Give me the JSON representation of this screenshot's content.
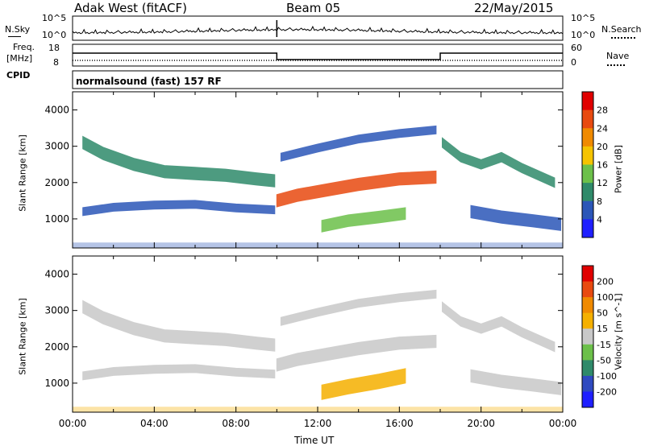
{
  "header": {
    "station": "Adak West (fitACF)",
    "beam": "Beam 05",
    "date": "22/May/2015"
  },
  "top_panel": {
    "left_label": "N.Sky",
    "left_ticks": [
      "10^5",
      "10^0"
    ],
    "right_label": "N.Search",
    "right_ticks": [
      "10^5",
      "10^0"
    ]
  },
  "freq_panel": {
    "left_label_1": "Freq.",
    "left_label_2": "[MHz]",
    "left_ticks": [
      "18",
      "8"
    ],
    "right_label": "Nave",
    "right_ticks": [
      "60",
      "0"
    ],
    "cpid_label": "CPID",
    "cpid_text": "normalsound (fast) 157 RF"
  },
  "chart_data": [
    {
      "type": "heatmap",
      "name": "power",
      "ylabel": "Slant Range [km]",
      "yticks": [
        1000,
        2000,
        3000,
        4000
      ],
      "ylim": [
        200,
        4500
      ],
      "xlim": [
        0,
        24
      ],
      "colorbar_label": "Power [dB]",
      "colorbar_ticks": [
        4,
        8,
        12,
        16,
        20,
        24,
        28
      ],
      "colorbar_colors": [
        "#1f1fff",
        "#2b56b8",
        "#2f8a6a",
        "#6cc04a",
        "#f5c300",
        "#f08a00",
        "#e84a10",
        "#e00000"
      ],
      "bands": [
        {
          "t": [
            0.5,
            1.5,
            3,
            4.5,
            6,
            7.5,
            9,
            9.9
          ],
          "r": [
            3100,
            2800,
            2500,
            2300,
            2250,
            2200,
            2100,
            2050
          ],
          "w": 170,
          "c": "#2f8a6a"
        },
        {
          "t": [
            0.5,
            2,
            4,
            6,
            8,
            9.9
          ],
          "r": [
            1200,
            1320,
            1380,
            1400,
            1300,
            1250
          ],
          "w": 110,
          "c": "#2b56b8"
        },
        {
          "t": [
            10,
            11,
            12.5,
            14,
            16,
            17.8
          ],
          "r": [
            1500,
            1650,
            1800,
            1950,
            2100,
            2150
          ],
          "w": 170,
          "c": "#e84a10"
        },
        {
          "t": [
            10.2,
            12,
            14,
            16,
            17.8
          ],
          "r": [
            2700,
            2950,
            3200,
            3350,
            3450
          ],
          "w": 110,
          "c": "#2b56b8"
        },
        {
          "t": [
            12.2,
            13.5,
            15,
            16.3
          ],
          "r": [
            800,
            950,
            1050,
            1150
          ],
          "w": 160,
          "c": "#6cc04a"
        },
        {
          "t": [
            18.1,
            19,
            20,
            21,
            22,
            23.6
          ],
          "r": [
            3100,
            2700,
            2500,
            2700,
            2400,
            2000
          ],
          "w": 130,
          "c": "#2f8a6a"
        },
        {
          "t": [
            19.5,
            21,
            22.5,
            23.9
          ],
          "r": [
            1200,
            1050,
            950,
            850
          ],
          "w": 170,
          "c": "#2b56b8"
        }
      ]
    },
    {
      "type": "heatmap",
      "name": "velocity",
      "ylabel": "Slant Range [km]",
      "yticks": [
        1000,
        2000,
        3000,
        4000
      ],
      "ylim": [
        200,
        4500
      ],
      "xlim": [
        0,
        24
      ],
      "xticks": [
        "00:00",
        "04:00",
        "08:00",
        "12:00",
        "16:00",
        "20:00",
        "00:00"
      ],
      "xlabel": "Time UT",
      "colorbar_label": "Velocity [m s^-1]",
      "colorbar_ticks": [
        200,
        100,
        50,
        15,
        -15,
        -50,
        -100,
        -200
      ],
      "colorbar_colors": [
        "#1f1fff",
        "#2f4ac0",
        "#2f8a6a",
        "#6cc04a",
        "#c8c8c8",
        "#f5b000",
        "#f08a00",
        "#e84a10",
        "#e00000"
      ],
      "bands": [
        {
          "t": [
            0.5,
            1.5,
            3,
            4.5,
            6,
            7.5,
            9,
            9.9
          ],
          "r": [
            3100,
            2800,
            2500,
            2300,
            2250,
            2200,
            2100,
            2050
          ],
          "w": 170,
          "c": "#c8c8c8"
        },
        {
          "t": [
            0.5,
            2,
            4,
            6,
            8,
            9.9
          ],
          "r": [
            1200,
            1320,
            1380,
            1400,
            1300,
            1250
          ],
          "w": 110,
          "c": "#c8c8c8"
        },
        {
          "t": [
            10,
            11,
            12.5,
            14,
            16,
            17.8
          ],
          "r": [
            1500,
            1650,
            1800,
            1950,
            2100,
            2150
          ],
          "w": 170,
          "c": "#c8c8c8"
        },
        {
          "t": [
            10.2,
            12,
            14,
            16,
            17.8
          ],
          "r": [
            2700,
            2950,
            3200,
            3350,
            3450
          ],
          "w": 110,
          "c": "#c8c8c8"
        },
        {
          "t": [
            12.2,
            13.5,
            15,
            16.3
          ],
          "r": [
            750,
            900,
            1050,
            1200
          ],
          "w": 200,
          "c": "#f5b000"
        },
        {
          "t": [
            18.1,
            19,
            20,
            21,
            22,
            23.6
          ],
          "r": [
            3100,
            2700,
            2500,
            2700,
            2400,
            2000
          ],
          "w": 130,
          "c": "#c8c8c8"
        },
        {
          "t": [
            19.5,
            21,
            22.5,
            23.9
          ],
          "r": [
            1200,
            1050,
            950,
            850
          ],
          "w": 170,
          "c": "#c8c8c8"
        }
      ]
    }
  ]
}
